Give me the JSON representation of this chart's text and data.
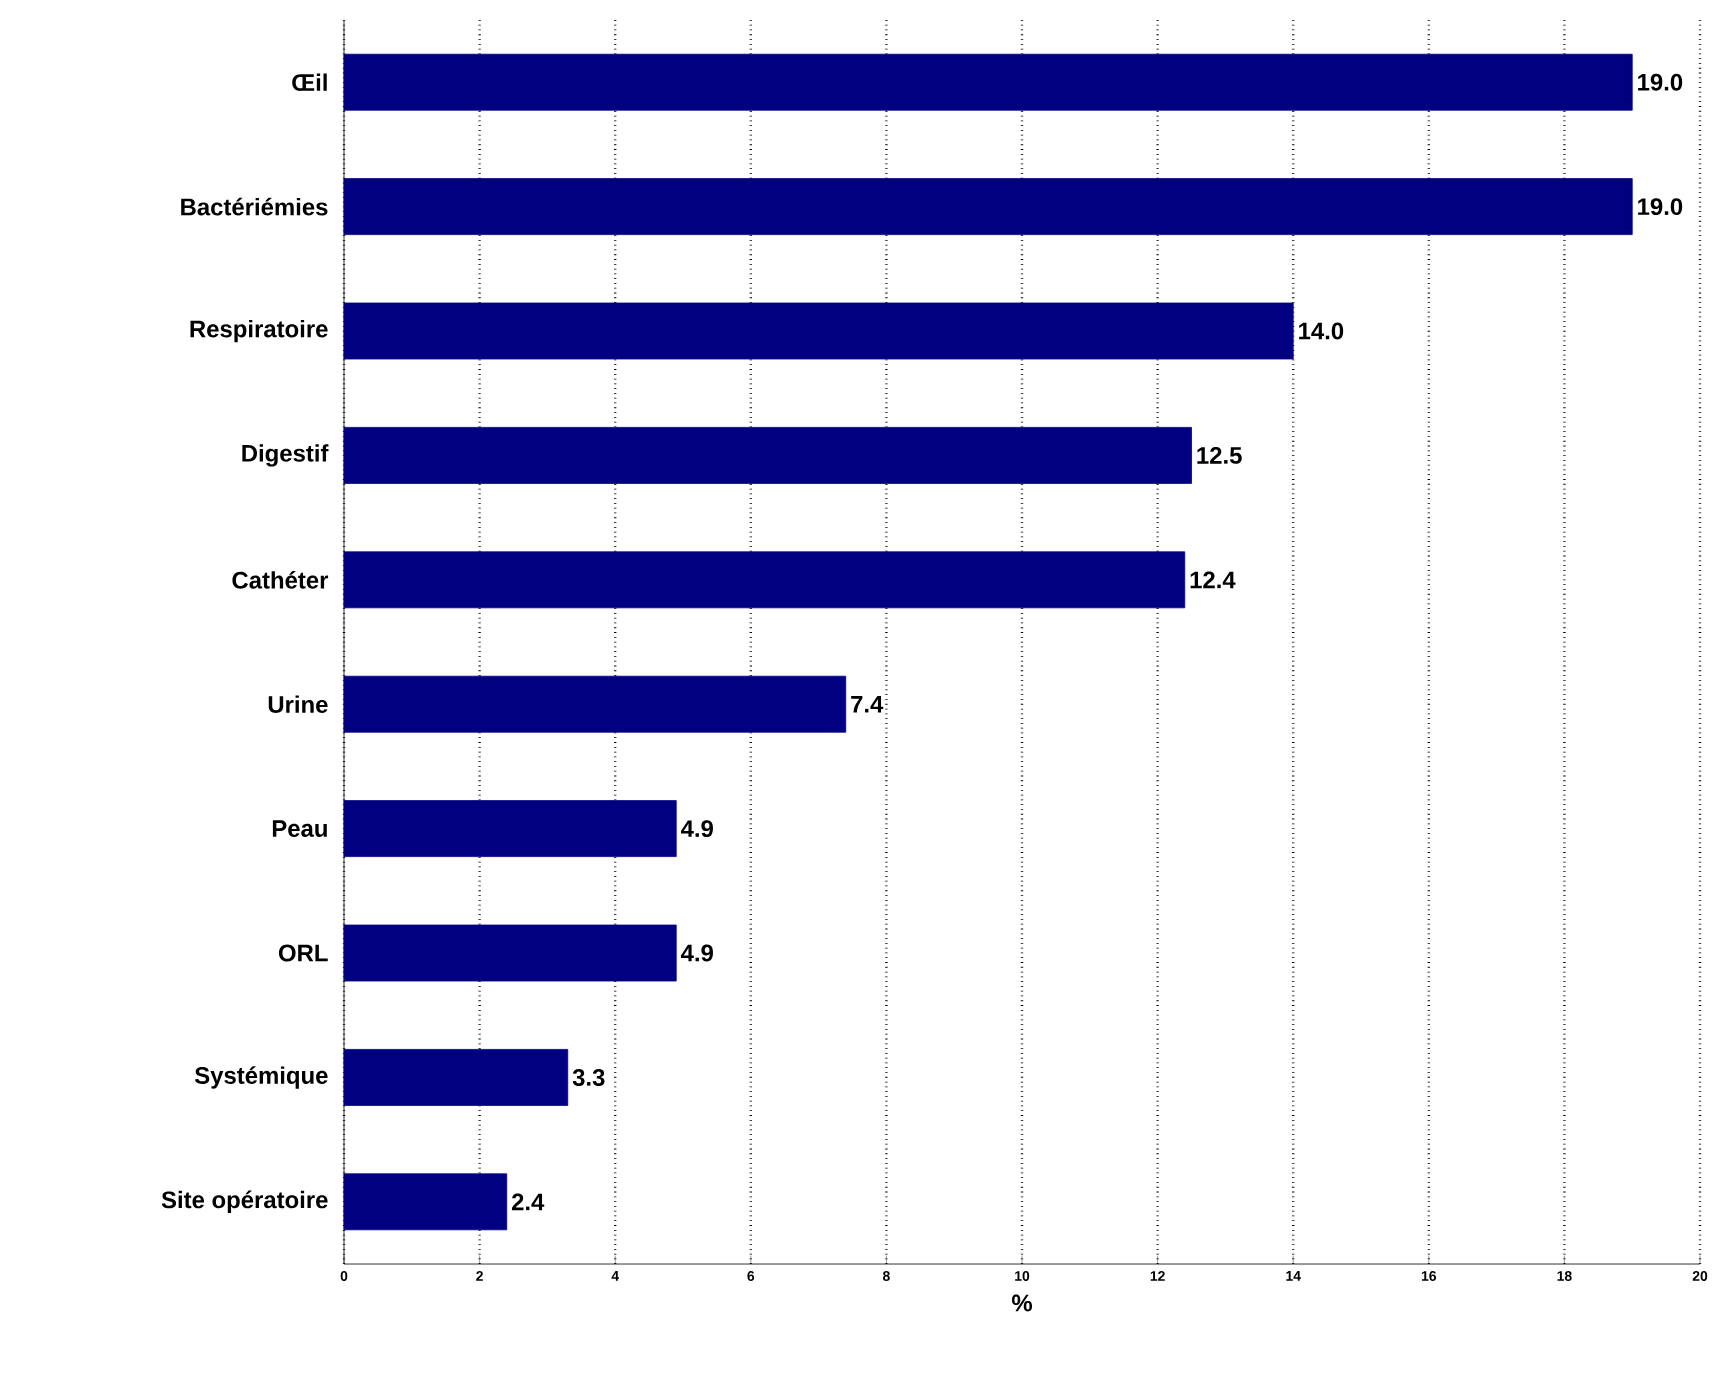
{
  "chart_data": {
    "type": "bar",
    "orientation": "horizontal",
    "xlabel": "%",
    "categories": [
      "Œil",
      "Bactériémies",
      "Respiratoire",
      "Digestif",
      "Cathéter",
      "Urine",
      "Peau",
      "ORL",
      "Systémique",
      "Site opératoire"
    ],
    "values": [
      19.0,
      19.0,
      14.0,
      12.5,
      12.4,
      7.4,
      4.9,
      4.9,
      3.3,
      2.4
    ],
    "value_labels": [
      "19.0",
      "19.0",
      "14.0",
      "12.5",
      "12.4",
      "7.4",
      "4.9",
      "4.9",
      "3.3",
      "2.4"
    ],
    "color": "#000080",
    "xlim": [
      0,
      20
    ],
    "xticks": [
      0,
      2,
      4,
      6,
      8,
      10,
      12,
      14,
      16,
      18,
      20
    ],
    "grid": "x"
  }
}
